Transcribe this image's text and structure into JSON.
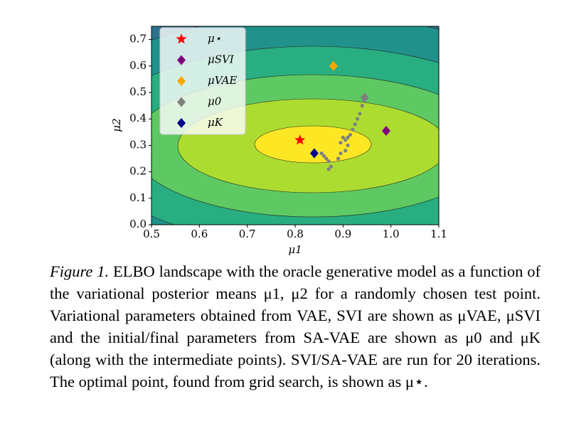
{
  "chart_data": {
    "type": "scatter",
    "xlabel": "μ1",
    "ylabel": "μ2",
    "xlim": [
      0.5,
      1.1
    ],
    "ylim": [
      0,
      0.75
    ],
    "xticks": [
      0.5,
      0.6,
      0.7,
      0.8,
      0.9,
      {
        "value": 1,
        "label": "1.0"
      },
      1.1
    ],
    "yticks": [
      {
        "value": 0,
        "label": "0.0"
      },
      0.1,
      0.2,
      0.3,
      0.4,
      0.5,
      0.6,
      0.7
    ],
    "legend": "upper left",
    "series": [
      {
        "name": "μ⋆",
        "color": "#ff0000",
        "marker": "star",
        "x": [
          0.81
        ],
        "values": [
          0.32
        ]
      },
      {
        "name": "μSVI",
        "color": "#800080",
        "marker": "diamond",
        "x": [
          0.99
        ],
        "values": [
          0.355
        ]
      },
      {
        "name": "μVAE",
        "color": "#ffa500",
        "marker": "diamond",
        "x": [
          0.88
        ],
        "values": [
          0.6
        ]
      },
      {
        "name": "μ0",
        "color": "#808080",
        "marker": "diamond",
        "x": [
          0.945
        ],
        "values": [
          0.48
        ]
      },
      {
        "name": "μK",
        "color": "#00008b",
        "marker": "diamond",
        "x": [
          0.84
        ],
        "values": [
          0.27
        ]
      },
      {
        "color": "#808080",
        "marker": "dot",
        "x": [
          0.94,
          0.935,
          0.93,
          0.925,
          0.92,
          0.915,
          0.91,
          0.905,
          0.9,
          0.895,
          0.91,
          0.905,
          0.895,
          0.89,
          0.875,
          0.87,
          0.865,
          0.87,
          0.86,
          0.855
        ],
        "values": [
          0.45,
          0.42,
          0.4,
          0.38,
          0.36,
          0.34,
          0.33,
          0.32,
          0.33,
          0.31,
          0.3,
          0.28,
          0.27,
          0.25,
          0.22,
          0.24,
          0.25,
          0.21,
          0.26,
          0.27
        ]
      }
    ]
  },
  "caption": {
    "label": "Figure 1.",
    "text": "ELBO landscape with the oracle generative model as a function of the variational posterior means μ1, μ2 for a randomly chosen test point. Variational parameters obtained from VAE, SVI are shown as μVAE, μSVI and the initial/final parameters from SA-VAE are shown as μ0 and μK (along with the intermediate points). SVI/SA-VAE are run for 20 iterations. The optimal point, found from grid search, is shown as μ⋆."
  }
}
